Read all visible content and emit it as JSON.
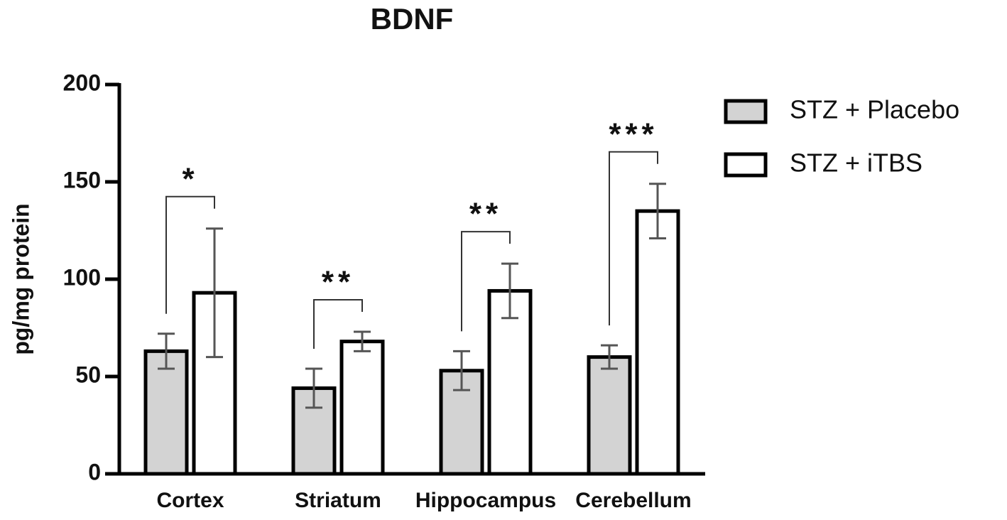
{
  "chart_data": {
    "type": "bar",
    "title": "BDNF",
    "y_label": "pg/mg protein",
    "categories": [
      "Cortex",
      "Striatum",
      "Hippocampus",
      "Cerebellum"
    ],
    "series": [
      {
        "name": "STZ + Placebo",
        "color": "#d3d3d3",
        "values": [
          63,
          44,
          53,
          60
        ],
        "errors": [
          9,
          10,
          10,
          6
        ]
      },
      {
        "name": "STZ + iTBS",
        "color": "#ffffff",
        "values": [
          93,
          68,
          94,
          135
        ],
        "errors": [
          33,
          5,
          14,
          14
        ]
      }
    ],
    "significance": [
      "*",
      "**",
      "**",
      "***"
    ],
    "ylim": [
      0,
      200
    ],
    "yticks": [
      0,
      50,
      100,
      150,
      200
    ],
    "grid": false,
    "legend": "top-right"
  }
}
